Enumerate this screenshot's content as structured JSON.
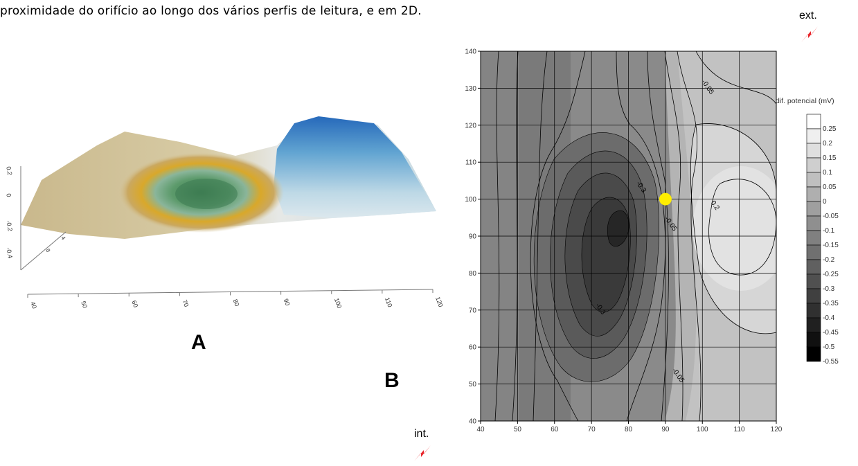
{
  "caption": "proximidade do orifício ao longo dos vários perfis de leitura, e em 2D.",
  "labels": {
    "panel_a": "A",
    "panel_b": "B",
    "ext": "ext.",
    "int": "int."
  },
  "colors": {
    "marker": "#ffee00",
    "bolt": "#e8262c",
    "surface_tan": "#d8c9a0",
    "surface_blue": "#1f6fc0",
    "surface_green": "#4f8a55",
    "surface_orange": "#e0a020"
  },
  "chart_data": [
    {
      "type": "surface3d",
      "panel": "A",
      "x_ticks": [
        "40",
        "50",
        "60",
        "70",
        "80",
        "90",
        "100",
        "110",
        "120"
      ],
      "z_ticks": [
        "0.2",
        "0",
        "-0.2",
        "-0.4"
      ],
      "depth_ticks": [
        "4",
        "8"
      ],
      "xlim": [
        40,
        120
      ],
      "zlim": [
        -0.4,
        0.2
      ]
    },
    {
      "type": "contour",
      "panel": "B",
      "x_ticks": [
        40,
        50,
        60,
        70,
        80,
        90,
        100,
        110,
        120
      ],
      "y_ticks": [
        40,
        50,
        60,
        70,
        80,
        90,
        100,
        110,
        120,
        130,
        140
      ],
      "xlim": [
        40,
        120
      ],
      "ylim": [
        40,
        140
      ],
      "grid": true,
      "marker": {
        "x": 90,
        "y": 100
      },
      "contour_labels": [
        {
          "text": "-0.05",
          "x": 101,
          "y": 130
        },
        {
          "text": "-0.3",
          "x": 83,
          "y": 103
        },
        {
          "text": "0.2",
          "x": 103,
          "y": 98
        },
        {
          "text": "-0.05",
          "x": 91,
          "y": 93
        },
        {
          "text": "-0.3",
          "x": 72,
          "y": 70
        },
        {
          "text": "-0.05",
          "x": 93,
          "y": 52
        }
      ],
      "legend": {
        "title": "dif. potencial (mV)",
        "placement": "right",
        "levels": [
          "0.25",
          "0.2",
          "0.15",
          "0.1",
          "0.05",
          "0",
          "-0.05",
          "-0.1",
          "-0.15",
          "-0.2",
          "-0.25",
          "-0.3",
          "-0.35",
          "-0.4",
          "-0.45",
          "-0.5",
          "-0.55"
        ]
      }
    }
  ]
}
